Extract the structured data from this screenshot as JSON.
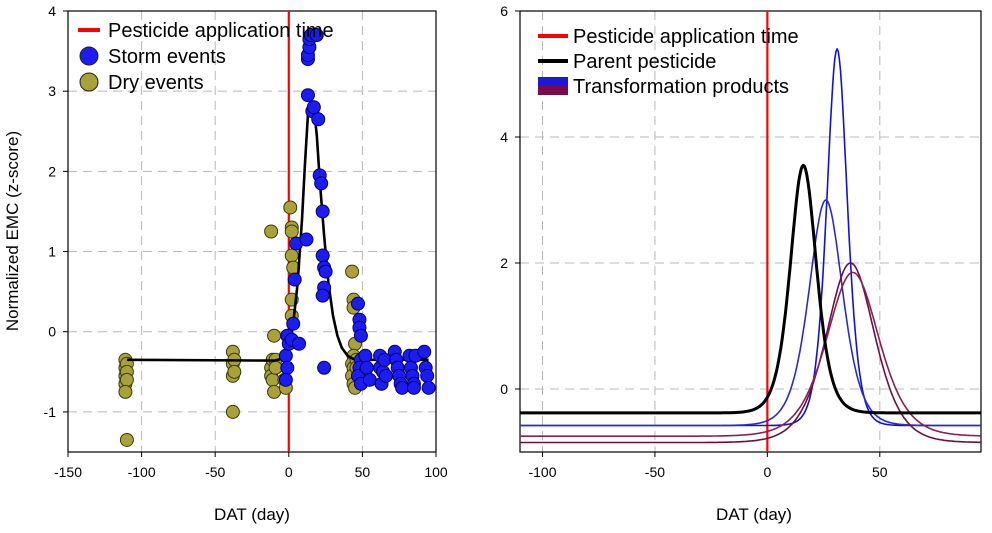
{
  "chart_data": [
    {
      "type": "scatter",
      "xlabel": "DAT (day)",
      "ylabel": "Normalized EMC (z-score)",
      "xlim": [
        -150,
        100
      ],
      "ylim": [
        -1.5,
        4
      ],
      "xticks": [
        -150,
        -100,
        -50,
        0,
        50,
        100
      ],
      "yticks": [
        -1,
        0,
        1,
        2,
        3,
        4
      ],
      "grid": true,
      "legend_position": "top-left",
      "legend": [
        {
          "label": "Pesticide application time",
          "kind": "line",
          "color": "#ff0000"
        },
        {
          "label": "Storm events",
          "kind": "marker",
          "color": "#1c1cf0"
        },
        {
          "label": "Dry events",
          "kind": "marker",
          "color": "#a8a238"
        }
      ],
      "application_time": 0,
      "series": [
        {
          "name": "Storm events",
          "color": "#1c1cf0",
          "points": [
            [
              -1,
              -0.05
            ],
            [
              -2,
              -0.3
            ],
            [
              -1,
              -0.45
            ],
            [
              -2,
              -0.6
            ],
            [
              0,
              -0.15
            ],
            [
              2,
              -0.1
            ],
            [
              3,
              0.1
            ],
            [
              4,
              0.65
            ],
            [
              5,
              1.1
            ],
            [
              7,
              -0.15
            ],
            [
              12,
              1.15
            ],
            [
              13,
              2.95
            ],
            [
              13,
              3.4
            ],
            [
              13,
              3.45
            ],
            [
              14,
              3.55
            ],
            [
              14,
              3.65
            ],
            [
              15,
              3.7
            ],
            [
              16,
              2.75
            ],
            [
              17,
              2.8
            ],
            [
              19,
              3.7
            ],
            [
              20,
              2.65
            ],
            [
              21,
              1.95
            ],
            [
              22,
              1.85
            ],
            [
              23,
              1.5
            ],
            [
              23,
              0.95
            ],
            [
              24,
              0.8
            ],
            [
              24,
              0.55
            ],
            [
              25,
              0.75
            ],
            [
              23,
              0.45
            ],
            [
              24,
              -0.45
            ],
            [
              47,
              0.35
            ],
            [
              48,
              0.15
            ],
            [
              48,
              0.05
            ],
            [
              49,
              -0.05
            ],
            [
              49,
              -0.35
            ],
            [
              48,
              -0.45
            ],
            [
              47,
              -0.55
            ],
            [
              49,
              -0.65
            ],
            [
              52,
              -0.3
            ],
            [
              53,
              -0.45
            ],
            [
              55,
              -0.6
            ],
            [
              62,
              -0.3
            ],
            [
              62,
              -0.45
            ],
            [
              63,
              -0.65
            ],
            [
              64,
              -0.5
            ],
            [
              65,
              -0.35
            ],
            [
              66,
              -0.55
            ],
            [
              72,
              -0.25
            ],
            [
              73,
              -0.35
            ],
            [
              74,
              -0.45
            ],
            [
              75,
              -0.55
            ],
            [
              76,
              -0.65
            ],
            [
              77,
              -0.7
            ],
            [
              82,
              -0.3
            ],
            [
              83,
              -0.45
            ],
            [
              84,
              -0.55
            ],
            [
              85,
              -0.65
            ],
            [
              85,
              -0.7
            ],
            [
              86,
              -0.3
            ],
            [
              92,
              -0.25
            ],
            [
              93,
              -0.45
            ],
            [
              94,
              -0.55
            ],
            [
              95,
              -0.7
            ]
          ]
        },
        {
          "name": "Dry events",
          "color": "#a8a238",
          "points": [
            [
              -111,
              -0.35
            ],
            [
              -111,
              -0.45
            ],
            [
              -111,
              -0.55
            ],
            [
              -111,
              -0.65
            ],
            [
              -110,
              -0.4
            ],
            [
              -110,
              -0.5
            ],
            [
              -110,
              -0.6
            ],
            [
              -111,
              -0.75
            ],
            [
              -110,
              -1.35
            ],
            [
              -38,
              -0.25
            ],
            [
              -38,
              -0.4
            ],
            [
              -38,
              -0.55
            ],
            [
              -37,
              -0.35
            ],
            [
              -37,
              -0.5
            ],
            [
              -38,
              -1.0
            ],
            [
              -12,
              1.25
            ],
            [
              -12,
              -0.45
            ],
            [
              -12,
              -0.55
            ],
            [
              -11,
              -0.35
            ],
            [
              -11,
              -0.6
            ],
            [
              -10,
              -0.75
            ],
            [
              -10,
              -0.05
            ],
            [
              -9,
              -0.35
            ],
            [
              -9,
              -0.45
            ],
            [
              -3,
              -0.6
            ],
            [
              -2,
              -0.7
            ],
            [
              1,
              1.55
            ],
            [
              2,
              1.3
            ],
            [
              2,
              1.25
            ],
            [
              2,
              0.95
            ],
            [
              3,
              0.8
            ],
            [
              2,
              0.4
            ],
            [
              2,
              0.2
            ],
            [
              43,
              0.75
            ],
            [
              44,
              0.4
            ],
            [
              44,
              0.3
            ],
            [
              45,
              -0.15
            ],
            [
              44,
              -0.3
            ],
            [
              43,
              -0.4
            ],
            [
              44,
              -0.45
            ],
            [
              43,
              -0.55
            ],
            [
              44,
              -0.65
            ],
            [
              45,
              -0.7
            ],
            [
              46,
              -0.35
            ],
            [
              46,
              -0.45
            ]
          ]
        },
        {
          "name": "Fitted curve",
          "color": "#000000",
          "points": [
            [
              -110,
              -0.35
            ],
            [
              -10,
              -0.36
            ],
            [
              -5,
              -0.34
            ],
            [
              0,
              -0.22
            ],
            [
              3,
              0.1
            ],
            [
              6,
              0.6
            ],
            [
              9,
              1.4
            ],
            [
              11,
              2.1
            ],
            [
              13,
              2.7
            ],
            [
              15,
              2.85
            ],
            [
              17,
              2.8
            ],
            [
              19,
              2.45
            ],
            [
              21,
              1.9
            ],
            [
              24,
              1.2
            ],
            [
              27,
              0.6
            ],
            [
              30,
              0.2
            ],
            [
              33,
              -0.05
            ],
            [
              36,
              -0.2
            ],
            [
              40,
              -0.3
            ],
            [
              45,
              -0.35
            ],
            [
              95,
              -0.35
            ]
          ]
        }
      ]
    },
    {
      "type": "line",
      "xlabel": "DAT (day)",
      "ylabel": "",
      "xlim": [
        -110,
        95
      ],
      "ylim": [
        -1,
        6
      ],
      "xticks": [
        -100,
        -50,
        0,
        50
      ],
      "yticks": [
        0,
        2,
        4,
        6
      ],
      "grid": true,
      "legend_position": "top-left",
      "legend": [
        {
          "label": "Pesticide application time",
          "kind": "line",
          "color": "#ff0000"
        },
        {
          "label": "Parent pesticide",
          "kind": "line",
          "color": "#000000"
        },
        {
          "label": "Transformation products",
          "kind": "dual",
          "color": "#1a1ad8",
          "color2": "#7a0a4a"
        }
      ],
      "application_time": 0,
      "series": [
        {
          "name": "Parent pesticide",
          "color": "#000000",
          "width": 3,
          "baseline": -0.38,
          "peak": 3.55,
          "center": 16,
          "width_param": 7
        },
        {
          "color": "#1010e0",
          "width": 1.6,
          "baseline": -0.58,
          "peak": 5.4,
          "center": 31,
          "width_param": 5.5
        },
        {
          "color": "#2a2ad0",
          "width": 1.6,
          "baseline": -0.58,
          "peak": 3.0,
          "center": 26,
          "width_param": 9
        },
        {
          "color": "#6a1040",
          "width": 1.6,
          "baseline": -0.85,
          "peak": 2.0,
          "center": 37,
          "width_param": 13
        },
        {
          "color": "#8a2050",
          "width": 1.6,
          "baseline": -0.75,
          "peak": 1.85,
          "center": 38,
          "width_param": 14
        }
      ]
    }
  ]
}
